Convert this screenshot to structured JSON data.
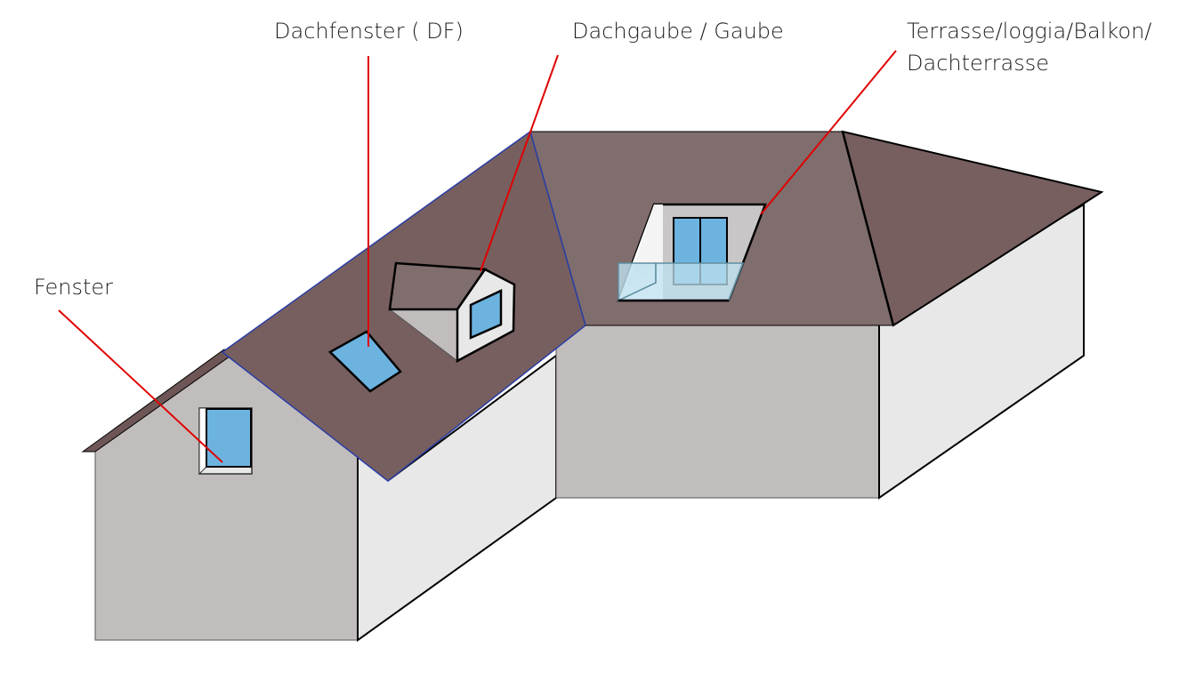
{
  "labels": {
    "dachfenster": "Dachfenster ( DF)",
    "dachgaube": "Dachgaube / Gaube",
    "terrasse_line1": "Terrasse/loggia/Balkon/",
    "terrasse_line2": "Dachterrasse",
    "fenster": "Fenster"
  },
  "colors": {
    "roof": "#775f5f",
    "roof_light": "#806d6d",
    "wall_shade": "#c2bdbd",
    "wall_light": "#e9e8e9",
    "glass": "#6cb3e0",
    "glass_railing": "#bde0ef",
    "leader_line": "#e00000",
    "outline": "#000000",
    "ridge_blue": "#2b3ea6"
  }
}
